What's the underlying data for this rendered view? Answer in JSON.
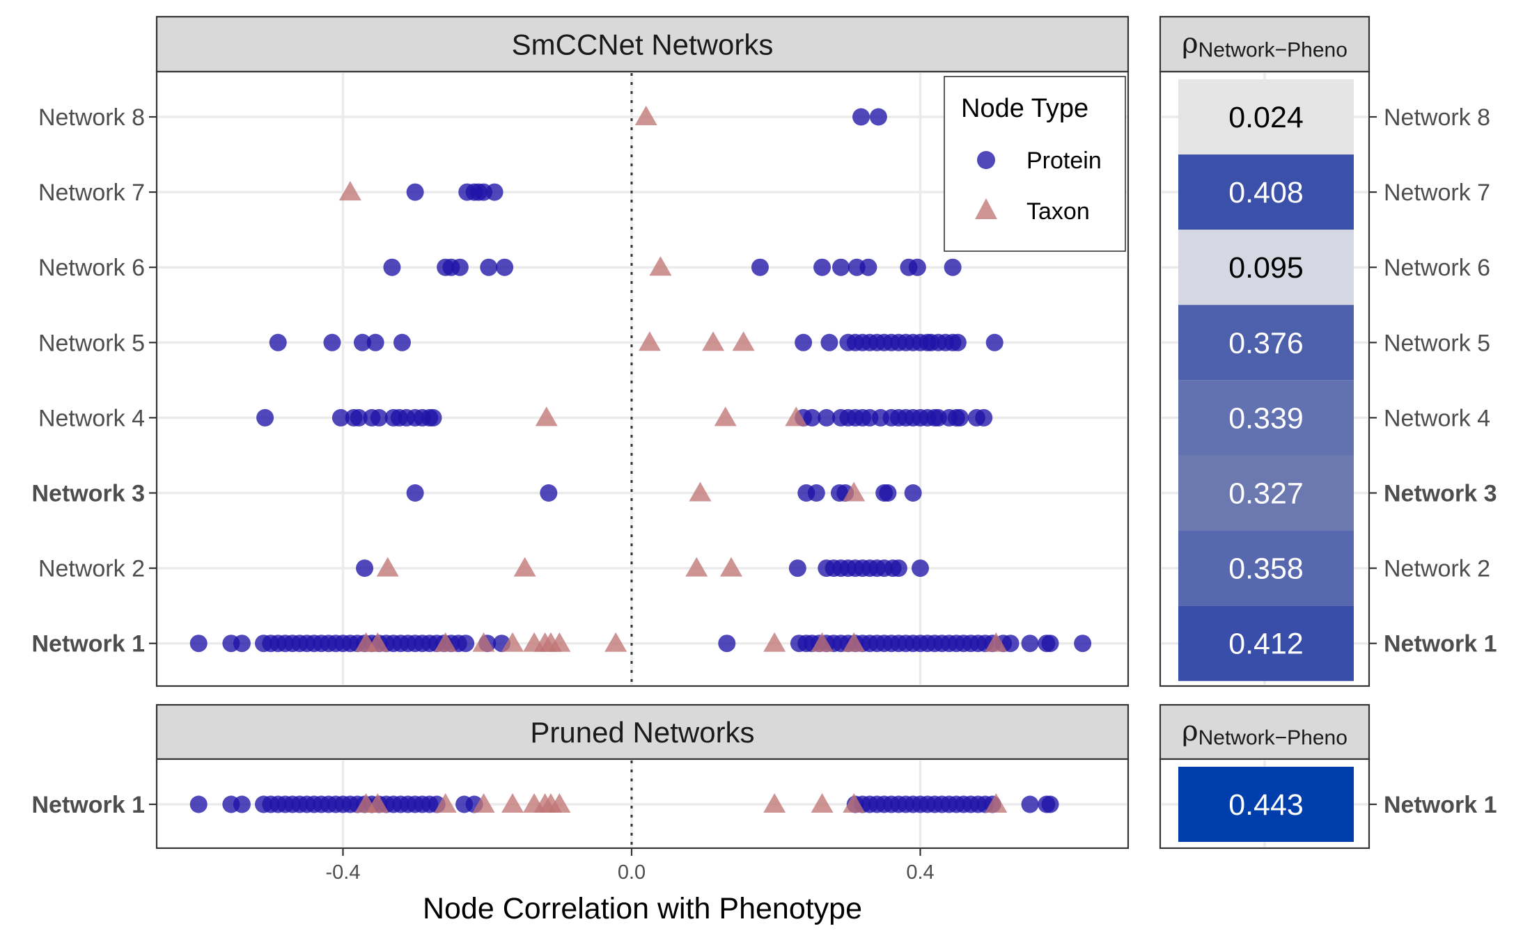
{
  "chart_data": {
    "type": "scatter",
    "xlabel": "Node Correlation with Phenotype",
    "x_ticks": [
      "-0.4",
      "0.0",
      "0.4"
    ],
    "x_tick_values": [
      -0.4,
      0.0,
      0.4
    ],
    "xlim": [
      -0.66,
      0.68
    ],
    "legend": {
      "title": "Node Type",
      "position": "top-right",
      "entries": [
        {
          "label": "Protein",
          "shape": "circle",
          "color": "#2a1fb0"
        },
        {
          "label": "Taxon",
          "shape": "triangle",
          "color": "#c98384"
        }
      ]
    },
    "rho_header": {
      "symbol": "ρ",
      "subscript": "Network−Pheno"
    },
    "panels": [
      {
        "title": "SmCCNet Networks",
        "networks": [
          {
            "label": "Network 8",
            "bold": false,
            "rho": "0.024",
            "rho_value": 0.024,
            "tile_color": "#e5e5e5",
            "text_color": "#000000",
            "protein": [
              0.318,
              0.342
            ],
            "taxon": [
              0.02
            ]
          },
          {
            "label": "Network 7",
            "bold": false,
            "rho": "0.408",
            "rho_value": 0.408,
            "tile_color": "#3b50a9",
            "text_color": "#ffffff",
            "protein": [
              -0.3,
              -0.228,
              -0.218,
              -0.212,
              -0.205,
              -0.19
            ],
            "taxon": [
              -0.39
            ]
          },
          {
            "label": "Network 6",
            "bold": false,
            "rho": "0.095",
            "rho_value": 0.095,
            "tile_color": "#d5d8e2",
            "text_color": "#000000",
            "protein": [
              -0.332,
              -0.258,
              -0.25,
              -0.238,
              -0.198,
              -0.176,
              0.178,
              0.264,
              0.29,
              0.312,
              0.328,
              0.384,
              0.396,
              0.445
            ],
            "taxon": [
              0.04
            ]
          },
          {
            "label": "Network 5",
            "bold": false,
            "rho": "0.376",
            "rho_value": 0.376,
            "tile_color": "#4d60ac",
            "text_color": "#ffffff",
            "protein": [
              -0.49,
              -0.415,
              -0.373,
              -0.355,
              -0.318,
              0.238,
              0.274,
              0.3,
              0.31,
              0.32,
              0.33,
              0.34,
              0.35,
              0.36,
              0.37,
              0.38,
              0.39,
              0.4,
              0.41,
              0.415,
              0.425,
              0.435,
              0.445,
              0.452,
              0.503
            ],
            "taxon": [
              0.025,
              0.113,
              0.155
            ]
          },
          {
            "label": "Network 4",
            "bold": false,
            "rho": "0.339",
            "rho_value": 0.339,
            "tile_color": "#6271af",
            "text_color": "#ffffff",
            "protein": [
              -0.508,
              -0.403,
              -0.385,
              -0.378,
              -0.36,
              -0.35,
              -0.33,
              -0.322,
              -0.312,
              -0.3,
              -0.29,
              -0.28,
              -0.275,
              0.238,
              0.25,
              0.27,
              0.29,
              0.3,
              0.31,
              0.32,
              0.33,
              0.345,
              0.36,
              0.37,
              0.38,
              0.39,
              0.4,
              0.41,
              0.42,
              0.425,
              0.44,
              0.45,
              0.455,
              0.478,
              0.488
            ],
            "taxon": [
              -0.118,
              0.13,
              0.228
            ]
          },
          {
            "label": "Network 3",
            "bold": true,
            "rho": "0.327",
            "rho_value": 0.327,
            "tile_color": "#6c79b0",
            "text_color": "#ffffff",
            "protein": [
              -0.3,
              -0.115,
              0.242,
              0.256,
              0.288,
              0.296,
              0.35,
              0.355,
              0.39
            ],
            "taxon": [
              0.095,
              0.308
            ]
          },
          {
            "label": "Network 2",
            "bold": false,
            "rho": "0.358",
            "rho_value": 0.358,
            "tile_color": "#5768ae",
            "text_color": "#ffffff",
            "protein": [
              -0.37,
              0.23,
              0.27,
              0.28,
              0.29,
              0.3,
              0.31,
              0.32,
              0.33,
              0.34,
              0.35,
              0.362,
              0.37,
              0.4
            ],
            "taxon": [
              -0.338,
              -0.148,
              0.09,
              0.138
            ]
          },
          {
            "label": "Network 1",
            "bold": true,
            "rho": "0.412",
            "rho_value": 0.412,
            "tile_color": "#384ea9",
            "text_color": "#ffffff",
            "protein": [
              -0.6,
              -0.555,
              -0.54,
              -0.51,
              -0.5,
              -0.49,
              -0.48,
              -0.47,
              -0.46,
              -0.45,
              -0.44,
              -0.43,
              -0.42,
              -0.41,
              -0.4,
              -0.39,
              -0.38,
              -0.37,
              -0.36,
              -0.35,
              -0.34,
              -0.33,
              -0.32,
              -0.31,
              -0.3,
              -0.29,
              -0.28,
              -0.27,
              -0.26,
              -0.25,
              -0.24,
              -0.23,
              -0.2,
              -0.18,
              0.132,
              0.232,
              0.242,
              0.25,
              0.26,
              0.27,
              0.28,
              0.29,
              0.3,
              0.31,
              0.32,
              0.33,
              0.34,
              0.35,
              0.36,
              0.37,
              0.38,
              0.39,
              0.4,
              0.41,
              0.42,
              0.43,
              0.44,
              0.45,
              0.46,
              0.47,
              0.48,
              0.49,
              0.5,
              0.515,
              0.525,
              0.552,
              0.575,
              0.58,
              0.625
            ],
            "taxon": [
              -0.368,
              -0.352,
              -0.258,
              -0.205,
              -0.165,
              -0.135,
              -0.12,
              -0.112,
              -0.1,
              -0.022,
              0.198,
              0.264,
              0.308,
              0.505
            ]
          }
        ]
      },
      {
        "title": "Pruned Networks",
        "networks": [
          {
            "label": "Network 1",
            "bold": true,
            "rho": "0.443",
            "rho_value": 0.443,
            "tile_color": "#003fab",
            "text_color": "#ffffff",
            "protein": [
              -0.6,
              -0.555,
              -0.54,
              -0.51,
              -0.5,
              -0.49,
              -0.48,
              -0.47,
              -0.46,
              -0.45,
              -0.44,
              -0.43,
              -0.42,
              -0.41,
              -0.4,
              -0.39,
              -0.38,
              -0.37,
              -0.36,
              -0.35,
              -0.34,
              -0.33,
              -0.32,
              -0.31,
              -0.3,
              -0.29,
              -0.28,
              -0.27,
              -0.232,
              -0.218,
              0.31,
              0.32,
              0.33,
              0.34,
              0.35,
              0.36,
              0.37,
              0.38,
              0.39,
              0.4,
              0.41,
              0.42,
              0.43,
              0.44,
              0.45,
              0.46,
              0.47,
              0.48,
              0.49,
              0.5,
              0.552,
              0.575,
              0.58
            ],
            "taxon": [
              -0.368,
              -0.352,
              -0.258,
              -0.205,
              -0.165,
              -0.135,
              -0.12,
              -0.112,
              -0.1,
              0.198,
              0.264,
              0.308,
              0.505
            ]
          }
        ]
      }
    ]
  }
}
